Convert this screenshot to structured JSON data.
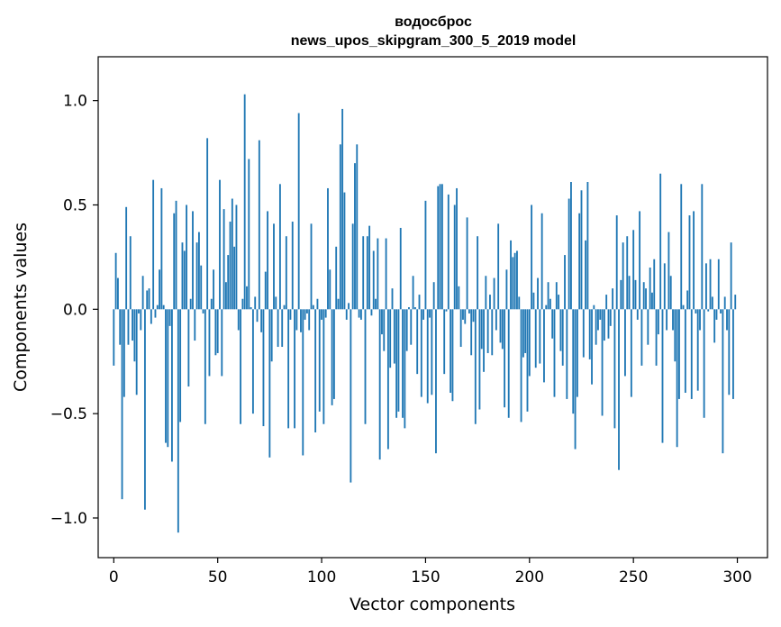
{
  "chart_data": {
    "type": "bar",
    "title": "водосброс",
    "subtitle": "news_upos_skipgram_300_5_2019 model",
    "xlabel": "Vector components",
    "ylabel": "Components values",
    "xlim": [
      -7.5,
      314.5
    ],
    "ylim": [
      -1.19,
      1.21
    ],
    "xticks": [
      0,
      50,
      100,
      150,
      200,
      250,
      300
    ],
    "xtick_labels": [
      "0",
      "50",
      "100",
      "150",
      "200",
      "250",
      "300"
    ],
    "yticks": [
      -1.0,
      -0.5,
      0.0,
      0.5,
      1.0
    ],
    "ytick_labels": [
      "−1.0",
      "−0.5",
      "0.0",
      "0.5",
      "1.0"
    ],
    "grid": false,
    "bar_color": "#1f77b4",
    "x": "0..299",
    "values": [
      -0.27,
      0.27,
      0.15,
      -0.17,
      -0.91,
      -0.42,
      0.49,
      -0.17,
      0.35,
      -0.15,
      -0.25,
      -0.41,
      -0.02,
      -0.1,
      0.16,
      -0.96,
      0.09,
      0.1,
      -0.07,
      0.62,
      -0.04,
      0.02,
      0.19,
      0.58,
      0.02,
      -0.64,
      -0.66,
      -0.08,
      -0.73,
      0.46,
      0.52,
      -1.07,
      -0.54,
      0.32,
      0.28,
      0.5,
      -0.37,
      0.05,
      0.47,
      -0.15,
      0.32,
      0.37,
      0.21,
      -0.02,
      -0.55,
      0.82,
      -0.32,
      0.05,
      0.19,
      -0.22,
      -0.21,
      0.62,
      -0.32,
      0.48,
      0.13,
      0.26,
      0.42,
      0.53,
      0.3,
      0.5,
      -0.1,
      -0.55,
      0.05,
      1.03,
      0.11,
      0.72,
      0.01,
      -0.5,
      0.06,
      -0.06,
      0.81,
      -0.11,
      -0.56,
      0.18,
      0.47,
      -0.71,
      -0.25,
      0.41,
      0.06,
      -0.18,
      0.6,
      -0.18,
      0.02,
      0.35,
      -0.57,
      -0.05,
      0.42,
      -0.57,
      -0.1,
      0.94,
      -0.11,
      -0.7,
      -0.05,
      -0.02,
      -0.1,
      0.41,
      0.02,
      -0.59,
      0.05,
      -0.49,
      -0.05,
      -0.55,
      -0.04,
      0.58,
      0.19,
      -0.46,
      -0.43,
      0.3,
      0.05,
      0.79,
      0.96,
      0.56,
      -0.05,
      0.03,
      -0.83,
      0.41,
      0.7,
      0.79,
      -0.04,
      -0.05,
      0.35,
      -0.55,
      0.35,
      0.4,
      -0.03,
      0.28,
      0.05,
      0.34,
      -0.72,
      -0.12,
      -0.2,
      0.34,
      -0.67,
      -0.28,
      0.1,
      -0.26,
      -0.52,
      -0.49,
      0.39,
      -0.52,
      -0.57,
      -0.2,
      0.01,
      -0.17,
      0.16,
      0.01,
      -0.31,
      0.07,
      -0.42,
      -0.05,
      0.52,
      -0.45,
      -0.04,
      -0.41,
      0.13,
      -0.69,
      0.59,
      0.6,
      0.6,
      -0.31,
      -0.01,
      0.55,
      -0.4,
      -0.44,
      0.5,
      0.58,
      0.11,
      -0.18,
      -0.05,
      -0.07,
      0.44,
      -0.02,
      -0.22,
      -0.06,
      -0.55,
      0.35,
      -0.48,
      -0.19,
      -0.3,
      0.16,
      -0.21,
      0.07,
      -0.22,
      0.15,
      -0.1,
      0.41,
      -0.16,
      -0.19,
      -0.47,
      0.19,
      -0.52,
      0.33,
      0.25,
      0.27,
      0.28,
      0.06,
      -0.54,
      -0.23,
      -0.21,
      -0.49,
      -0.32,
      0.5,
      0.08,
      -0.28,
      0.15,
      -0.26,
      0.46,
      -0.35,
      0.02,
      0.13,
      0.05,
      -0.14,
      -0.42,
      0.13,
      0.07,
      -0.2,
      -0.27,
      0.26,
      -0.43,
      0.53,
      0.61,
      -0.5,
      -0.67,
      -0.42,
      0.46,
      0.57,
      -0.23,
      0.33,
      0.61,
      -0.24,
      -0.36,
      0.02,
      -0.17,
      -0.1,
      -0.05,
      -0.51,
      -0.15,
      0.07,
      -0.14,
      -0.08,
      0.1,
      -0.57,
      0.45,
      -0.77,
      0.14,
      0.32,
      -0.32,
      0.35,
      0.16,
      -0.42,
      0.38,
      0.14,
      -0.05,
      0.47,
      -0.27,
      0.13,
      0.1,
      -0.17,
      0.2,
      0.08,
      0.24,
      -0.27,
      -0.12,
      0.65,
      -0.64,
      0.22,
      -0.1,
      0.37,
      0.16,
      -0.1,
      -0.25,
      -0.66,
      -0.43,
      0.6,
      0.02,
      -0.4,
      0.09,
      0.45,
      -0.43,
      0.47,
      -0.02,
      -0.39,
      -0.1,
      0.6,
      -0.52,
      0.22,
      -0.01,
      0.24,
      0.06,
      -0.16,
      -0.05,
      0.24,
      -0.02,
      -0.69,
      0.06,
      -0.1,
      -0.41,
      0.32,
      -0.43,
      0.07
    ]
  }
}
